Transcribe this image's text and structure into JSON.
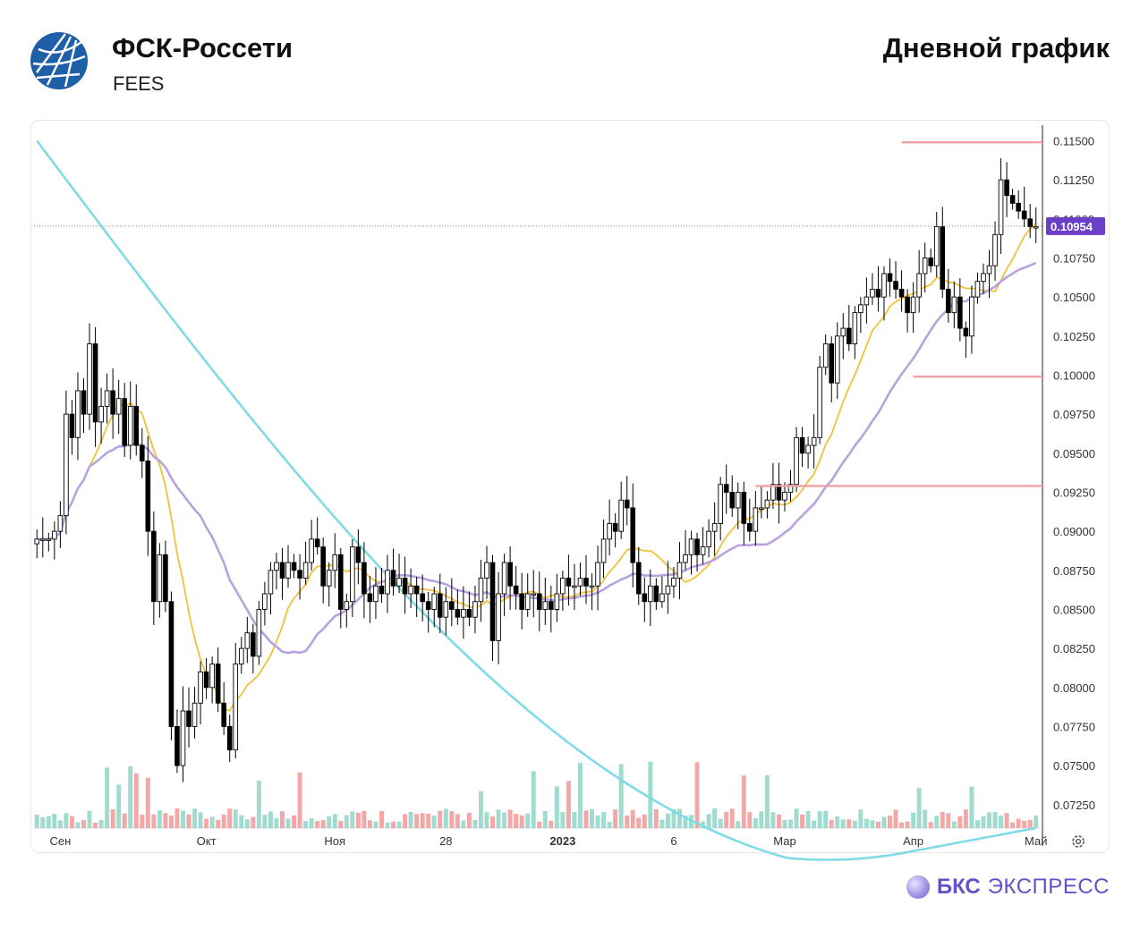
{
  "header": {
    "company": "ФСК-Россети",
    "ticker": "FEES",
    "headline": "Дневной график"
  },
  "brand": {
    "bold": "БКС",
    "regular": "ЭКСПРЕСС"
  },
  "colors": {
    "up_candle": "#ffffff",
    "down_candle": "#000000",
    "ma_short": "#f2c13a",
    "ma_mid": "#b8a2e0",
    "ma_long": "#7fdbe6",
    "level_lines": "#f0a0a8",
    "vol_up": "#9fdccf",
    "vol_down": "#f3a7a7",
    "price_badge": "#6c3fc9",
    "brand": "#5f53c9"
  },
  "icons": {
    "logo": "fsk-globe-logo",
    "settings": "gear-icon",
    "brand": "bks-sphere-icon"
  },
  "chart_data": {
    "type": "candlestick",
    "ylim": [
      0.071,
      0.116
    ],
    "yticks": [
      "0.11500",
      "0.11250",
      "0.11000",
      "0.10750",
      "0.10500",
      "0.10250",
      "0.10000",
      "0.09750",
      "0.09500",
      "0.09250",
      "0.09000",
      "0.08750",
      "0.08500",
      "0.08250",
      "0.08000",
      "0.07750",
      "0.07500",
      "0.07250"
    ],
    "xticks": [
      {
        "label": "Сен",
        "i": 4
      },
      {
        "label": "Окт",
        "i": 29
      },
      {
        "label": "Ноя",
        "i": 51
      },
      {
        "label": "28",
        "i": 70
      },
      {
        "label": "2023",
        "i": 90
      },
      {
        "label": "6",
        "i": 109
      },
      {
        "label": "Мар",
        "i": 128
      },
      {
        "label": "Апр",
        "i": 150
      },
      {
        "label": "Май",
        "i": 171
      }
    ],
    "last_price": "0.10954",
    "levels": [
      {
        "value": 0.1149,
        "from_i": 150
      },
      {
        "value": 0.0999,
        "from_i": 152
      },
      {
        "value": 0.0929,
        "from_i": 125
      }
    ],
    "closes": [
      0.0895,
      0.0895,
      0.0895,
      0.09,
      0.091,
      0.0975,
      0.096,
      0.099,
      0.0975,
      0.102,
      0.097,
      0.098,
      0.099,
      0.0975,
      0.0985,
      0.0955,
      0.098,
      0.0955,
      0.0945,
      0.09,
      0.0855,
      0.0885,
      0.0855,
      0.0775,
      0.075,
      0.0785,
      0.0775,
      0.079,
      0.081,
      0.08,
      0.0815,
      0.079,
      0.0775,
      0.076,
      0.0815,
      0.0825,
      0.0835,
      0.082,
      0.085,
      0.086,
      0.0875,
      0.088,
      0.087,
      0.088,
      0.0875,
      0.087,
      0.088,
      0.0895,
      0.089,
      0.0865,
      0.0875,
      0.0885,
      0.085,
      0.0855,
      0.089,
      0.088,
      0.086,
      0.0855,
      0.0865,
      0.086,
      0.0875,
      0.0865,
      0.087,
      0.086,
      0.0865,
      0.086,
      0.0855,
      0.085,
      0.086,
      0.0845,
      0.0855,
      0.085,
      0.0845,
      0.085,
      0.0845,
      0.0855,
      0.087,
      0.088,
      0.083,
      0.086,
      0.088,
      0.0865,
      0.086,
      0.085,
      0.086,
      0.086,
      0.085,
      0.0855,
      0.085,
      0.086,
      0.087,
      0.0865,
      0.0865,
      0.087,
      0.0865,
      0.0865,
      0.088,
      0.0895,
      0.0905,
      0.09,
      0.092,
      0.0915,
      0.088,
      0.086,
      0.0855,
      0.0865,
      0.0855,
      0.086,
      0.0865,
      0.087,
      0.088,
      0.0885,
      0.0895,
      0.0885,
      0.089,
      0.09,
      0.0905,
      0.093,
      0.0925,
      0.0915,
      0.0925,
      0.0905,
      0.09,
      0.0915,
      0.0915,
      0.092,
      0.093,
      0.092,
      0.0925,
      0.093,
      0.096,
      0.095,
      0.0955,
      0.096,
      0.1005,
      0.102,
      0.0995,
      0.1025,
      0.103,
      0.102,
      0.104,
      0.1045,
      0.105,
      0.1055,
      0.105,
      0.1065,
      0.106,
      0.1055,
      0.105,
      0.104,
      0.105,
      0.1065,
      0.1075,
      0.107,
      0.1095,
      0.1055,
      0.104,
      0.105,
      0.103,
      0.1025,
      0.105,
      0.106,
      0.1065,
      0.107,
      0.109,
      0.1125,
      0.1115,
      0.111,
      0.1105,
      0.11,
      0.1095,
      0.1095
    ]
  }
}
